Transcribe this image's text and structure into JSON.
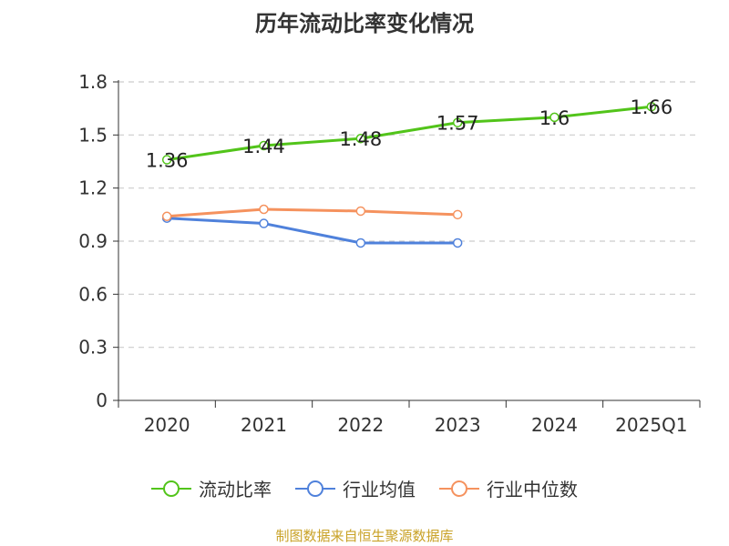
{
  "chart_data": {
    "type": "line",
    "title": "历年流动比率变化情况",
    "categories": [
      "2020",
      "2021",
      "2022",
      "2023",
      "2024",
      "2025Q1"
    ],
    "ylim": [
      0,
      1.8
    ],
    "yticks": [
      "0",
      "0.3",
      "0.6",
      "0.9",
      "1.2",
      "1.5",
      "1.8"
    ],
    "ytick_values": [
      0,
      0.3,
      0.6,
      0.9,
      1.2,
      1.5,
      1.8
    ],
    "grid": true,
    "legend_position": "bottom",
    "series": [
      {
        "name": "流动比率",
        "color": "#52c41a",
        "values": [
          1.36,
          1.44,
          1.48,
          1.57,
          1.6,
          1.66
        ],
        "labels": [
          "1.36",
          "1.44",
          "1.48",
          "1.57",
          "1.6",
          "1.66"
        ]
      },
      {
        "name": "行业均值",
        "color": "#4f81db",
        "values": [
          1.03,
          1.0,
          0.89,
          0.89,
          null,
          null
        ]
      },
      {
        "name": "行业中位数",
        "color": "#f5925e",
        "values": [
          1.04,
          1.08,
          1.07,
          1.05,
          null,
          null
        ]
      }
    ]
  },
  "source_text": "制图数据来自恒生聚源数据库"
}
